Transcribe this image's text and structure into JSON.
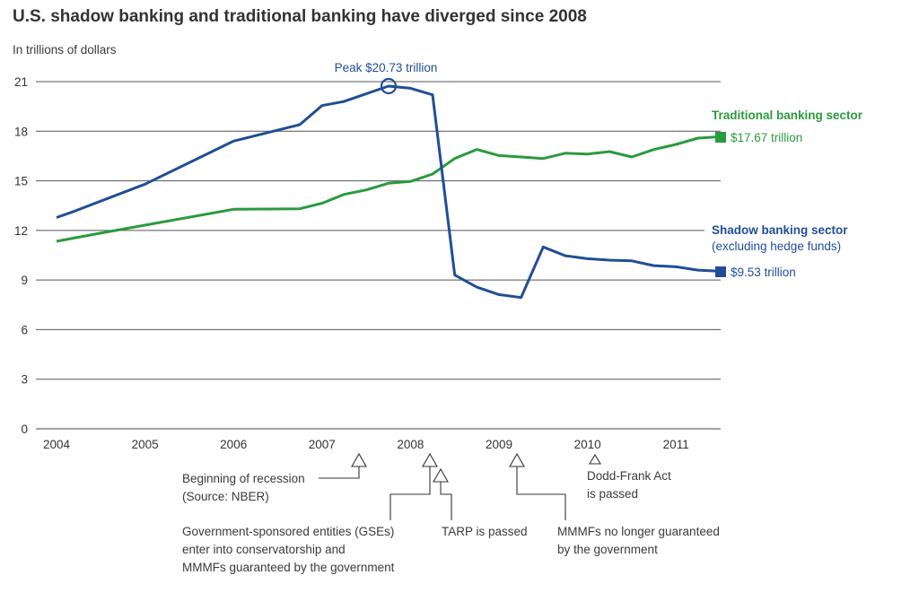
{
  "chart_data": {
    "type": "line",
    "title": "U.S. shadow banking and traditional banking have diverged since 2008",
    "ylabel": "In trillions of dollars",
    "xlabel": "",
    "ylim": [
      0,
      21
    ],
    "xlim": [
      2004,
      2011.5
    ],
    "yticks": [
      0,
      3,
      6,
      9,
      12,
      15,
      18,
      21
    ],
    "xticks": [
      2004,
      2005,
      2006,
      2007,
      2008,
      2009,
      2010,
      2011
    ],
    "grid": true,
    "colors": {
      "shadow": "#1f4e96",
      "traditional": "#2a9a3e"
    },
    "series": [
      {
        "name": "Shadow banking sector",
        "subtitle": "(excluding hedge funds)",
        "end_label": "$9.53 trillion",
        "x": [
          2004.0,
          2004.17,
          2005.0,
          2006.0,
          2006.75,
          2007.0,
          2007.25,
          2007.75,
          2008.0,
          2008.25,
          2008.5,
          2008.75,
          2009.0,
          2009.25,
          2009.5,
          2009.75,
          2010.0,
          2010.25,
          2010.5,
          2010.75,
          2011.0,
          2011.25,
          2011.5
        ],
        "y": [
          12.78,
          13.1,
          14.8,
          17.4,
          18.4,
          19.55,
          19.8,
          20.73,
          20.6,
          20.2,
          9.3,
          8.57,
          8.12,
          7.94,
          11.0,
          10.47,
          10.29,
          10.2,
          10.16,
          9.87,
          9.8,
          9.6,
          9.53
        ]
      },
      {
        "name": "Traditional banking sector",
        "end_label": "$17.67 trillion",
        "x": [
          2004.0,
          2004.4,
          2006.0,
          2006.75,
          2007.0,
          2007.25,
          2007.5,
          2007.75,
          2008.0,
          2008.25,
          2008.5,
          2008.75,
          2009.0,
          2009.25,
          2009.5,
          2009.75,
          2010.0,
          2010.25,
          2010.5,
          2010.75,
          2011.0,
          2011.25,
          2011.5
        ],
        "y": [
          11.34,
          11.74,
          13.28,
          13.31,
          13.64,
          14.18,
          14.45,
          14.85,
          14.96,
          15.41,
          16.35,
          16.9,
          16.53,
          16.44,
          16.35,
          16.67,
          16.62,
          16.77,
          16.44,
          16.89,
          17.2,
          17.58,
          17.67
        ]
      }
    ],
    "annotations": {
      "peak": "Peak $20.73 trillion",
      "recession": [
        "Beginning of recession",
        "(Source: NBER)"
      ],
      "gse": [
        "Government-sponsored entities (GSEs)",
        "enter into conservatorship and",
        "MMMFs guaranteed by the government"
      ],
      "tarp": [
        "TARP is passed"
      ],
      "mmmf": [
        "MMMFs no longer guaranteed",
        "by the government"
      ],
      "doddfrank": [
        "Dodd-Frank Act",
        "is passed"
      ]
    }
  }
}
